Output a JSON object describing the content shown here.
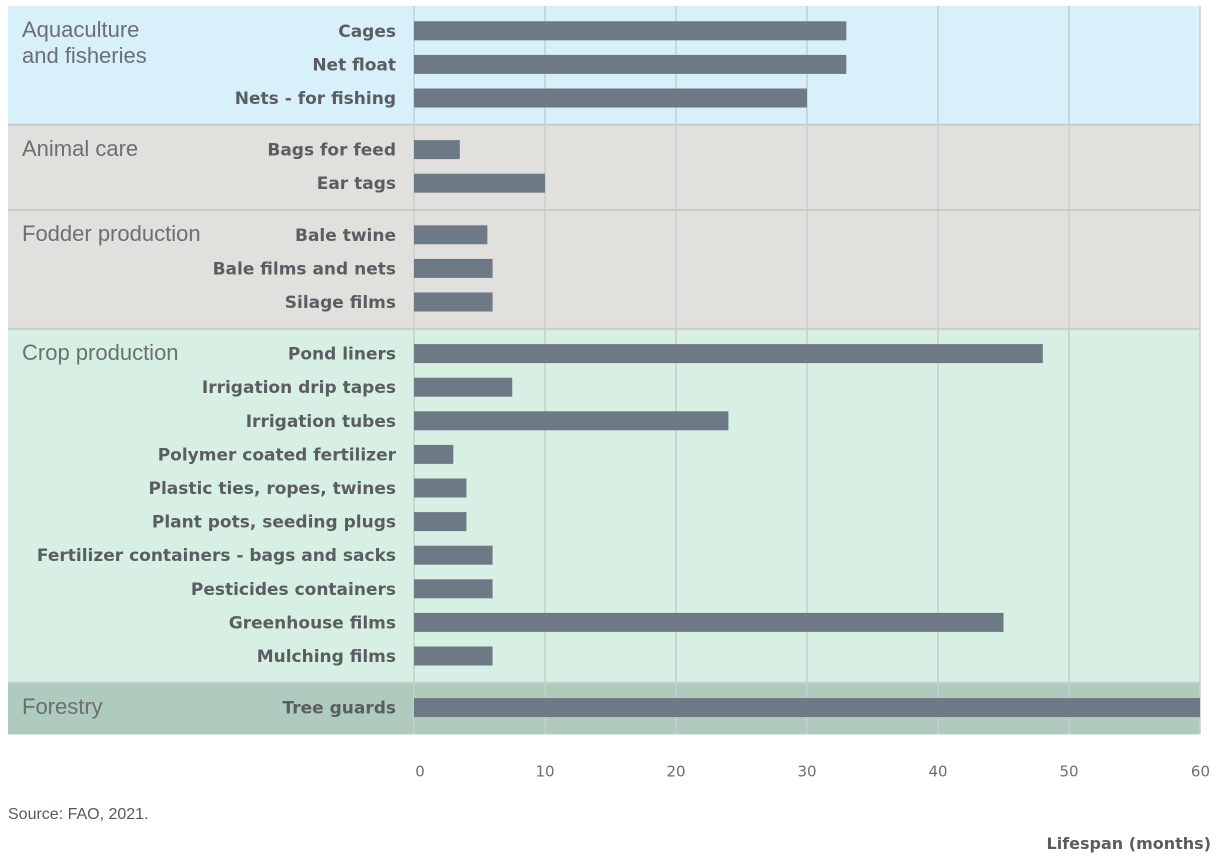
{
  "chart_data": {
    "type": "bar",
    "orientation": "horizontal",
    "xlabel": "Lifespan (months)",
    "xlim": [
      0,
      60
    ],
    "xticks": [
      0,
      10,
      20,
      30,
      40,
      50,
      60
    ],
    "grid": true,
    "groups": [
      {
        "name": "Aquaculture\nand fisheries",
        "color": "#d7f0fa",
        "items": [
          {
            "label": "Cages",
            "value": 33
          },
          {
            "label": "Net float",
            "value": 33
          },
          {
            "label": "Nets - for fishing",
            "value": 30
          }
        ]
      },
      {
        "name": "Animal care",
        "color": "#e2e0dd",
        "items": [
          {
            "label": "Bags for feed",
            "value": 3.5
          },
          {
            "label": "Ear tags",
            "value": 10
          }
        ]
      },
      {
        "name": "Fodder production",
        "color": "#e2e0dd",
        "items": [
          {
            "label": "Bale twine",
            "value": 5.6
          },
          {
            "label": "Bale films and nets",
            "value": 6
          },
          {
            "label": "Silage films",
            "value": 6
          }
        ]
      },
      {
        "name": "Crop production",
        "color": "#d8f0e3",
        "items": [
          {
            "label": "Pond liners",
            "value": 48
          },
          {
            "label": "Irrigation drip tapes",
            "value": 7.5
          },
          {
            "label": "Irrigation tubes",
            "value": 24
          },
          {
            "label": "Polymer coated fertilizer",
            "value": 3
          },
          {
            "label": "Plastic ties, ropes, twines",
            "value": 4
          },
          {
            "label": "Plant pots, seeding plugs",
            "value": 4
          },
          {
            "label": "Fertilizer containers - bags and sacks",
            "value": 6
          },
          {
            "label": "Pesticides containers",
            "value": 6
          },
          {
            "label": "Greenhouse films",
            "value": 45
          },
          {
            "label": "Mulching films",
            "value": 6
          }
        ]
      },
      {
        "name": "Forestry",
        "color": "#aecbbd",
        "items": [
          {
            "label": "Tree guards",
            "value": 60
          }
        ]
      }
    ],
    "bar_color": "#6e7986"
  },
  "source_note": "Source: FAO, 2021."
}
